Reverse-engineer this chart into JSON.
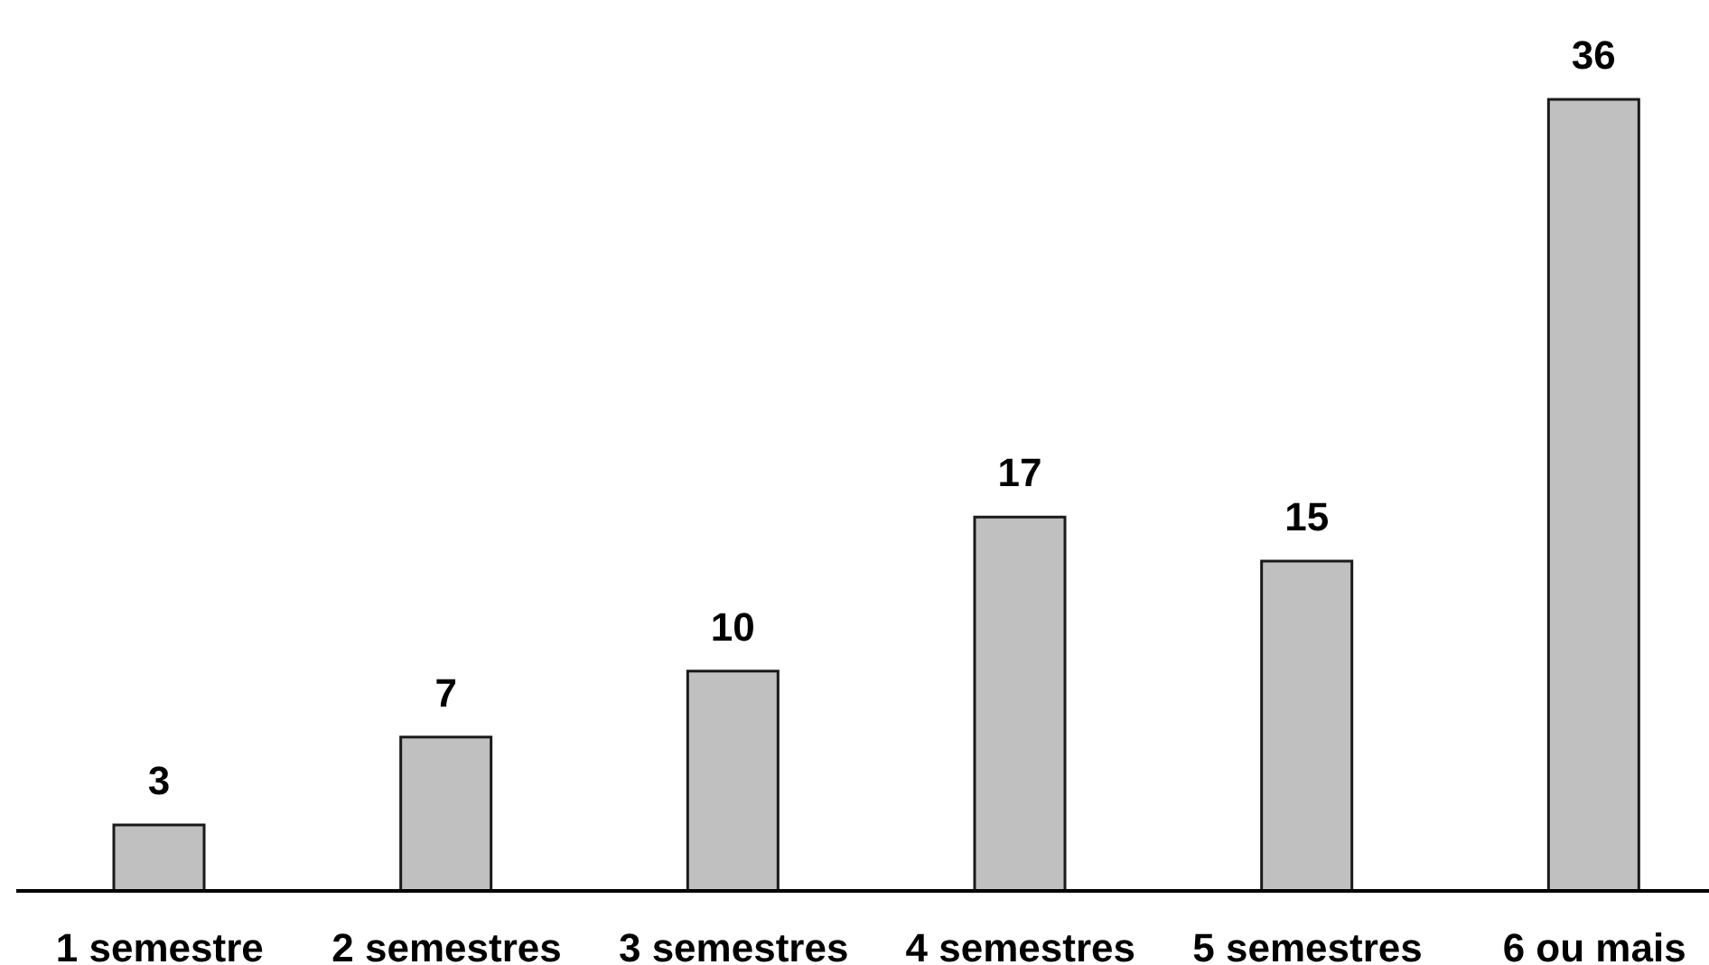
{
  "chart_data": {
    "type": "bar",
    "categories": [
      "1 semestre",
      "2 semestres",
      "3 semestres",
      "4 semestres",
      "5 semestres",
      "6 ou mais"
    ],
    "values": [
      3,
      7,
      10,
      17,
      15,
      36
    ],
    "color": "#c0c0c0",
    "data_labels": true
  }
}
